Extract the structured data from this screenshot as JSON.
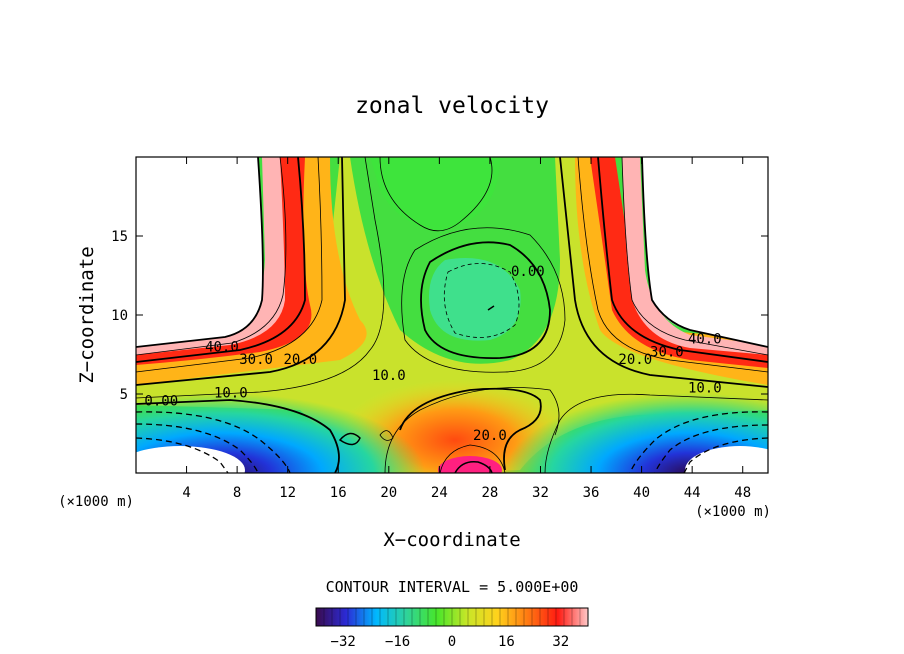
{
  "chart_data": {
    "type": "heatmap",
    "title": "zonal velocity",
    "xlabel": "X−coordinate",
    "ylabel": "Z−coordinate",
    "x_unit": "(×1000 m)",
    "z_unit": "(×1000 m)",
    "xlim": [
      0,
      50
    ],
    "ylim": [
      0,
      20
    ],
    "x_ticks": [
      4,
      8,
      12,
      16,
      20,
      24,
      28,
      32,
      36,
      40,
      44,
      48
    ],
    "y_ticks": [
      5,
      10,
      15
    ],
    "contour_interval_text": "CONTOUR INTERVAL = 5.000E+00",
    "contour_labels": [
      {
        "text": "40.0",
        "x": 6.8,
        "z": 8.0
      },
      {
        "text": "30.0",
        "x": 9.5,
        "z": 7.2
      },
      {
        "text": "20.0",
        "x": 13.0,
        "z": 7.2
      },
      {
        "text": "10.0",
        "x": 7.5,
        "z": 5.1
      },
      {
        "text": "0.00",
        "x": 2.0,
        "z": 4.6
      },
      {
        "text": "10.0",
        "x": 20.0,
        "z": 6.2
      },
      {
        "text": "0.00",
        "x": 31.0,
        "z": 12.8
      },
      {
        "text": "20.0",
        "x": 28.0,
        "z": 2.4
      },
      {
        "text": "40.0",
        "x": 45.0,
        "z": 8.5
      },
      {
        "text": "30.0",
        "x": 42.0,
        "z": 7.7
      },
      {
        "text": "20.0",
        "x": 39.5,
        "z": 7.2
      },
      {
        "text": "10.0",
        "x": 45.0,
        "z": 5.4
      }
    ],
    "colorbar": {
      "range": [
        -40,
        40
      ],
      "ticks": [
        -32,
        -16,
        0,
        16,
        32
      ],
      "colors": [
        "#3a0b4d",
        "#2b2bd6",
        "#00b8ff",
        "#2fd39a",
        "#47e62a",
        "#c8e628",
        "#ffd21c",
        "#ff7a12",
        "#ff1a12",
        "#ffc8c8"
      ]
    }
  }
}
